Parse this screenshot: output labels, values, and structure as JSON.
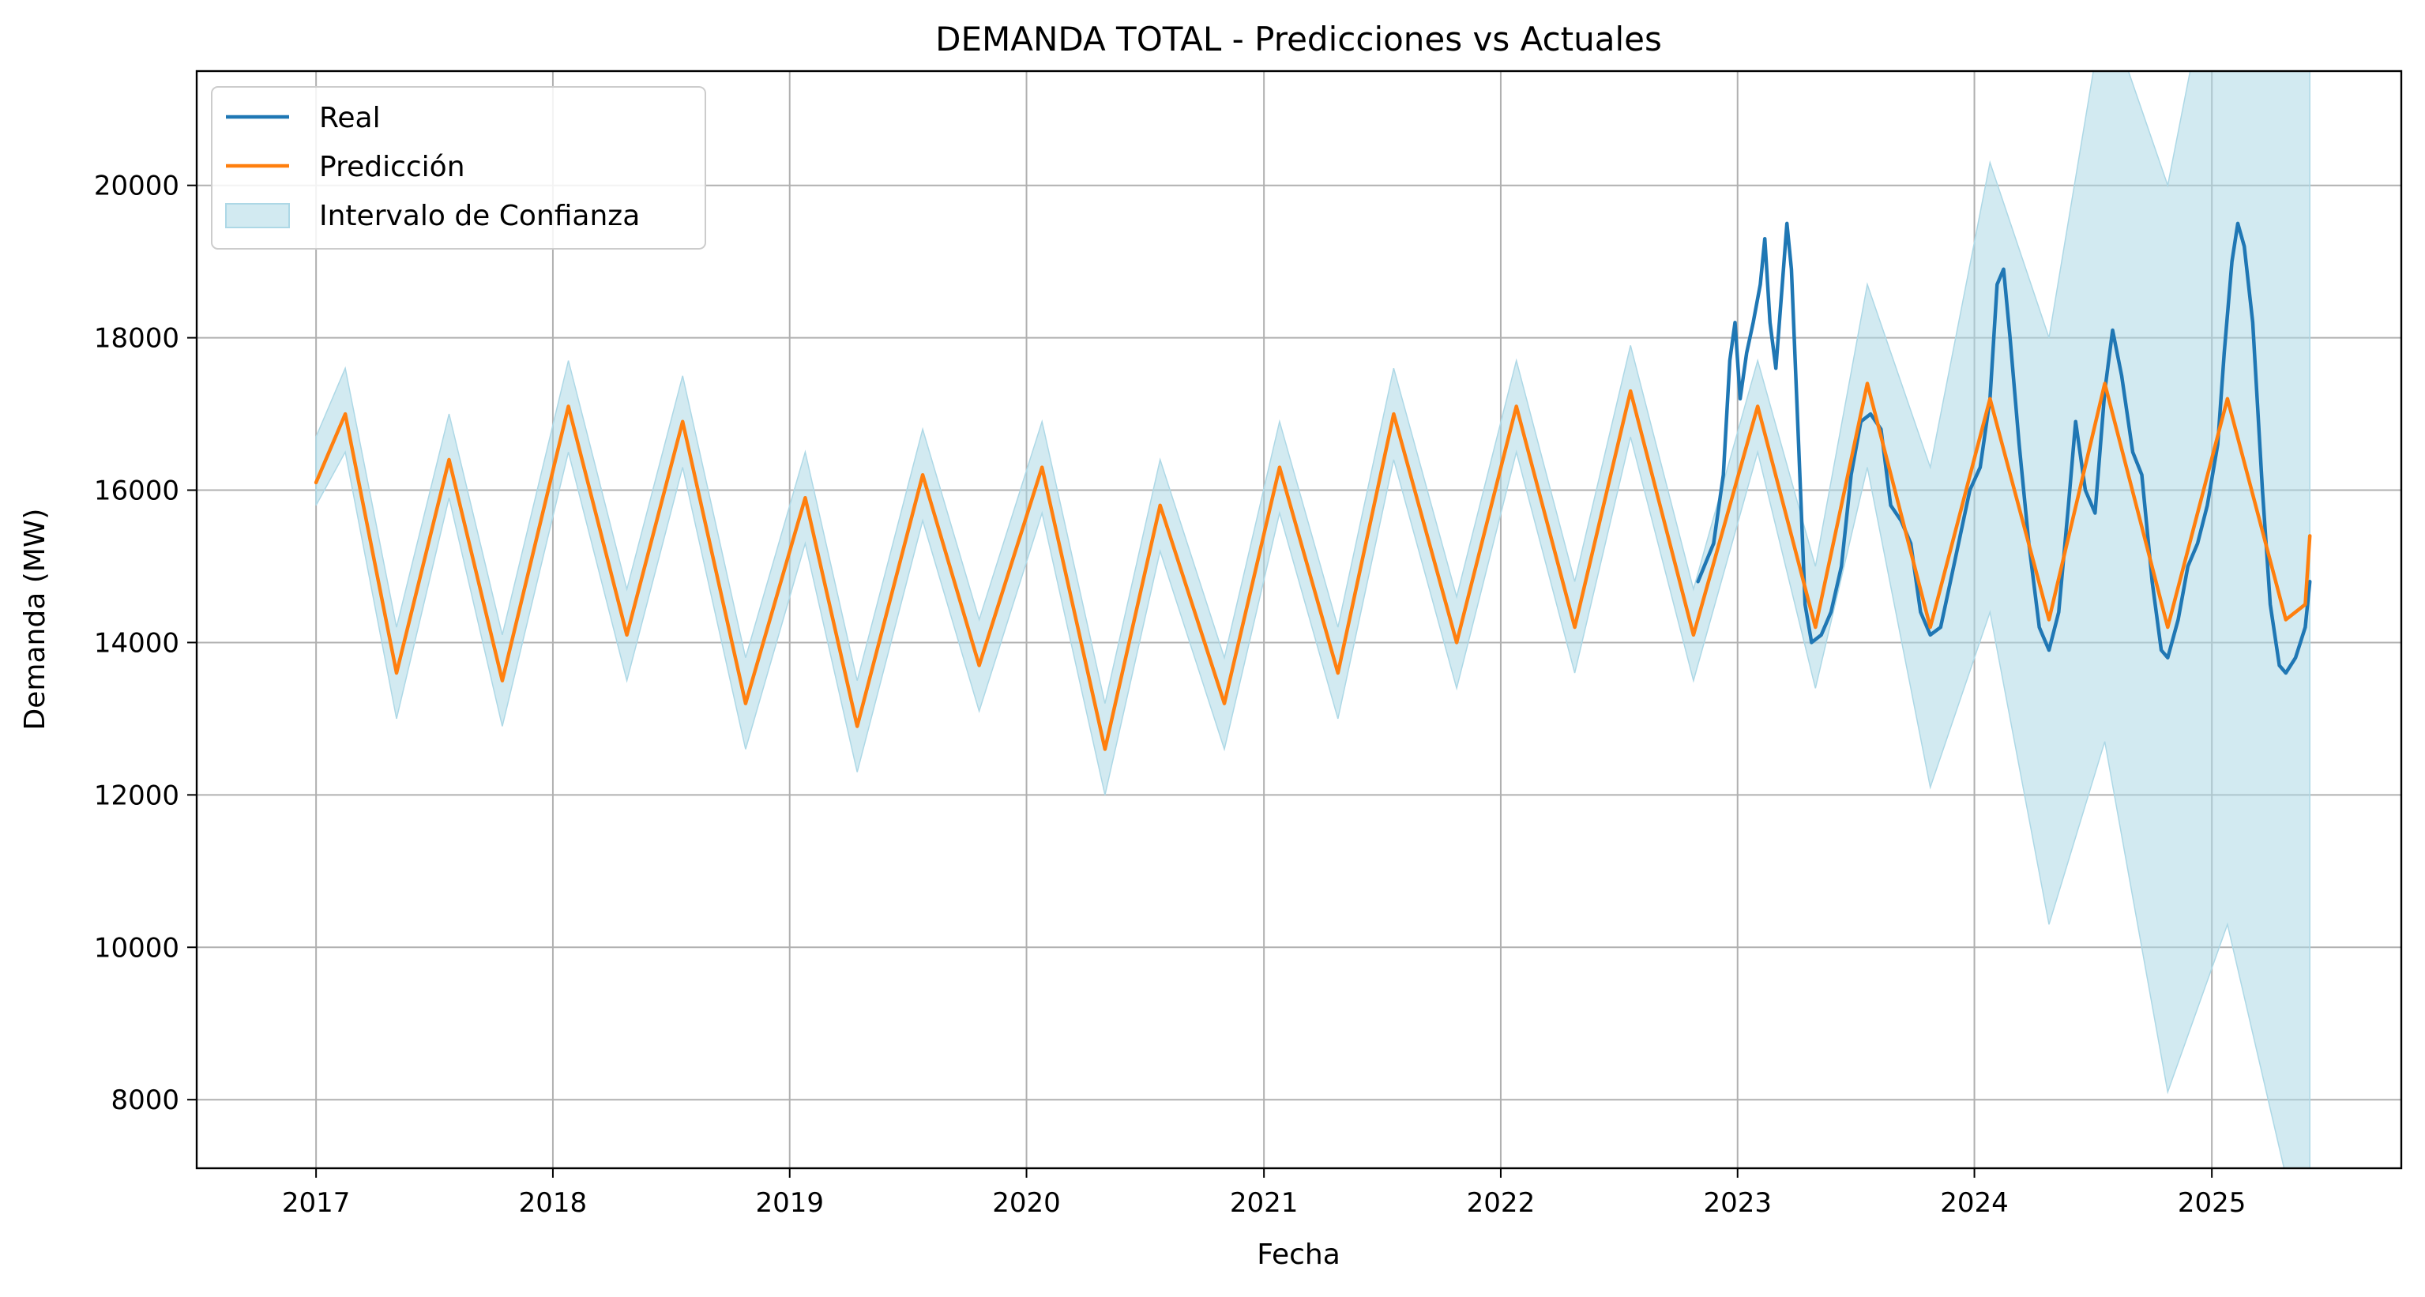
{
  "chart_data": {
    "type": "line",
    "title": "DEMANDA TOTAL - Predicciones vs Actuales",
    "xlabel": "Fecha",
    "ylabel": "Demanda (MW)",
    "x_type": "date",
    "xlim": [
      "2016-07-01",
      "2025-10-20"
    ],
    "ylim": [
      7100,
      21500
    ],
    "xticks": [
      {
        "date": "2017-01-01",
        "label": "2017"
      },
      {
        "date": "2018-01-01",
        "label": "2018"
      },
      {
        "date": "2019-01-01",
        "label": "2019"
      },
      {
        "date": "2020-01-01",
        "label": "2020"
      },
      {
        "date": "2021-01-01",
        "label": "2021"
      },
      {
        "date": "2022-01-01",
        "label": "2022"
      },
      {
        "date": "2023-01-01",
        "label": "2023"
      },
      {
        "date": "2024-01-01",
        "label": "2024"
      },
      {
        "date": "2025-01-01",
        "label": "2025"
      }
    ],
    "yticks": [
      {
        "value": 8000,
        "label": "8000"
      },
      {
        "value": 10000,
        "label": "10000"
      },
      {
        "value": 12000,
        "label": "12000"
      },
      {
        "value": 14000,
        "label": "14000"
      },
      {
        "value": 16000,
        "label": "16000"
      },
      {
        "value": 18000,
        "label": "18000"
      },
      {
        "value": 20000,
        "label": "20000"
      }
    ],
    "grid": true,
    "legend_position": "top-left",
    "series": [
      {
        "name": "Real",
        "color": "#1f77b4",
        "points": [
          [
            "2022-11-01",
            14800
          ],
          [
            "2022-11-25",
            15300
          ],
          [
            "2022-12-10",
            16200
          ],
          [
            "2022-12-20",
            17700
          ],
          [
            "2022-12-28",
            18200
          ],
          [
            "2023-01-05",
            17200
          ],
          [
            "2023-01-15",
            17800
          ],
          [
            "2023-01-25",
            18200
          ],
          [
            "2023-02-05",
            18700
          ],
          [
            "2023-02-12",
            19300
          ],
          [
            "2023-02-20",
            18200
          ],
          [
            "2023-03-01",
            17600
          ],
          [
            "2023-03-10",
            18600
          ],
          [
            "2023-03-18",
            19500
          ],
          [
            "2023-03-25",
            18900
          ],
          [
            "2023-04-05",
            16600
          ],
          [
            "2023-04-15",
            14500
          ],
          [
            "2023-04-25",
            14000
          ],
          [
            "2023-05-10",
            14100
          ],
          [
            "2023-05-25",
            14400
          ],
          [
            "2023-06-10",
            15000
          ],
          [
            "2023-06-25",
            16200
          ],
          [
            "2023-07-10",
            16900
          ],
          [
            "2023-07-25",
            17000
          ],
          [
            "2023-08-10",
            16800
          ],
          [
            "2023-08-25",
            15800
          ],
          [
            "2023-09-10",
            15600
          ],
          [
            "2023-09-25",
            15300
          ],
          [
            "2023-10-10",
            14400
          ],
          [
            "2023-10-25",
            14100
          ],
          [
            "2023-11-10",
            14200
          ],
          [
            "2023-11-25",
            14800
          ],
          [
            "2023-12-10",
            15400
          ],
          [
            "2023-12-25",
            16000
          ],
          [
            "2024-01-10",
            16300
          ],
          [
            "2024-01-25",
            17200
          ],
          [
            "2024-02-05",
            18700
          ],
          [
            "2024-02-15",
            18900
          ],
          [
            "2024-02-25",
            18000
          ],
          [
            "2024-03-10",
            16600
          ],
          [
            "2024-03-25",
            15300
          ],
          [
            "2024-04-10",
            14200
          ],
          [
            "2024-04-25",
            13900
          ],
          [
            "2024-05-10",
            14400
          ],
          [
            "2024-05-25",
            15800
          ],
          [
            "2024-06-05",
            16900
          ],
          [
            "2024-06-20",
            16000
          ],
          [
            "2024-07-05",
            15700
          ],
          [
            "2024-07-20",
            17300
          ],
          [
            "2024-08-01",
            18100
          ],
          [
            "2024-08-15",
            17500
          ],
          [
            "2024-09-01",
            16500
          ],
          [
            "2024-09-15",
            16200
          ],
          [
            "2024-10-01",
            14800
          ],
          [
            "2024-10-15",
            13900
          ],
          [
            "2024-10-25",
            13800
          ],
          [
            "2024-11-10",
            14300
          ],
          [
            "2024-11-25",
            15000
          ],
          [
            "2024-12-10",
            15300
          ],
          [
            "2024-12-25",
            15800
          ],
          [
            "2025-01-10",
            16600
          ],
          [
            "2025-01-20",
            17800
          ],
          [
            "2025-02-01",
            19000
          ],
          [
            "2025-02-10",
            19500
          ],
          [
            "2025-02-20",
            19200
          ],
          [
            "2025-03-05",
            18200
          ],
          [
            "2025-03-20",
            16000
          ],
          [
            "2025-04-01",
            14500
          ],
          [
            "2025-04-15",
            13700
          ],
          [
            "2025-04-25",
            13600
          ],
          [
            "2025-05-10",
            13800
          ],
          [
            "2025-05-25",
            14200
          ],
          [
            "2025-06-01",
            14800
          ]
        ]
      },
      {
        "name": "Predicción",
        "color": "#ff7f0e",
        "points": [
          [
            "2017-01-01",
            16100
          ],
          [
            "2017-02-15",
            17000
          ],
          [
            "2017-05-05",
            13600
          ],
          [
            "2017-07-25",
            16400
          ],
          [
            "2017-10-15",
            13500
          ],
          [
            "2018-01-25",
            17100
          ],
          [
            "2018-04-25",
            14100
          ],
          [
            "2018-07-20",
            16900
          ],
          [
            "2018-10-25",
            13200
          ],
          [
            "2019-01-25",
            15900
          ],
          [
            "2019-04-15",
            12900
          ],
          [
            "2019-07-25",
            16200
          ],
          [
            "2019-10-20",
            13700
          ],
          [
            "2020-01-25",
            16300
          ],
          [
            "2020-05-01",
            12600
          ],
          [
            "2020-07-25",
            15800
          ],
          [
            "2020-11-01",
            13200
          ],
          [
            "2021-01-25",
            16300
          ],
          [
            "2021-04-25",
            13600
          ],
          [
            "2021-07-20",
            17000
          ],
          [
            "2021-10-25",
            14000
          ],
          [
            "2022-01-25",
            17100
          ],
          [
            "2022-04-25",
            14200
          ],
          [
            "2022-07-20",
            17300
          ],
          [
            "2022-10-25",
            14100
          ],
          [
            "2023-02-01",
            17100
          ],
          [
            "2023-05-01",
            14200
          ],
          [
            "2023-07-20",
            17400
          ],
          [
            "2023-10-25",
            14200
          ],
          [
            "2024-01-25",
            17200
          ],
          [
            "2024-04-25",
            14300
          ],
          [
            "2024-07-20",
            17400
          ],
          [
            "2024-10-25",
            14200
          ],
          [
            "2025-01-25",
            17200
          ],
          [
            "2025-04-25",
            14300
          ],
          [
            "2025-05-25",
            14500
          ],
          [
            "2025-06-01",
            15400
          ]
        ]
      }
    ],
    "band": {
      "name": "Intervalo de Confianza",
      "color": "#add8e6",
      "points": [
        [
          "2017-01-01",
          15800,
          16700
        ],
        [
          "2017-02-15",
          16500,
          17600
        ],
        [
          "2017-05-05",
          13000,
          14200
        ],
        [
          "2017-07-25",
          15900,
          17000
        ],
        [
          "2017-10-15",
          12900,
          14100
        ],
        [
          "2018-01-25",
          16500,
          17700
        ],
        [
          "2018-04-25",
          13500,
          14700
        ],
        [
          "2018-07-20",
          16300,
          17500
        ],
        [
          "2018-10-25",
          12600,
          13800
        ],
        [
          "2019-01-25",
          15300,
          16500
        ],
        [
          "2019-04-15",
          12300,
          13500
        ],
        [
          "2019-07-25",
          15600,
          16800
        ],
        [
          "2019-10-20",
          13100,
          14300
        ],
        [
          "2020-01-25",
          15700,
          16900
        ],
        [
          "2020-05-01",
          12000,
          13200
        ],
        [
          "2020-07-25",
          15200,
          16400
        ],
        [
          "2020-11-01",
          12600,
          13800
        ],
        [
          "2021-01-25",
          15700,
          16900
        ],
        [
          "2021-04-25",
          13000,
          14200
        ],
        [
          "2021-07-20",
          16400,
          17600
        ],
        [
          "2021-10-25",
          13400,
          14600
        ],
        [
          "2022-01-25",
          16500,
          17700
        ],
        [
          "2022-04-25",
          13600,
          14800
        ],
        [
          "2022-07-20",
          16700,
          17900
        ],
        [
          "2022-10-25",
          13500,
          14700
        ],
        [
          "2023-02-01",
          16500,
          17700
        ],
        [
          "2023-05-01",
          13400,
          15000
        ],
        [
          "2023-07-20",
          16300,
          18700
        ],
        [
          "2023-10-25",
          12100,
          16300
        ],
        [
          "2024-01-25",
          14400,
          20300
        ],
        [
          "2024-04-25",
          10300,
          18000
        ],
        [
          "2024-07-20",
          12700,
          22400
        ],
        [
          "2024-10-25",
          8100,
          20000
        ],
        [
          "2025-01-25",
          10300,
          24000
        ],
        [
          "2025-04-25",
          7000,
          22000
        ],
        [
          "2025-06-01",
          7000,
          22000
        ]
      ]
    }
  }
}
